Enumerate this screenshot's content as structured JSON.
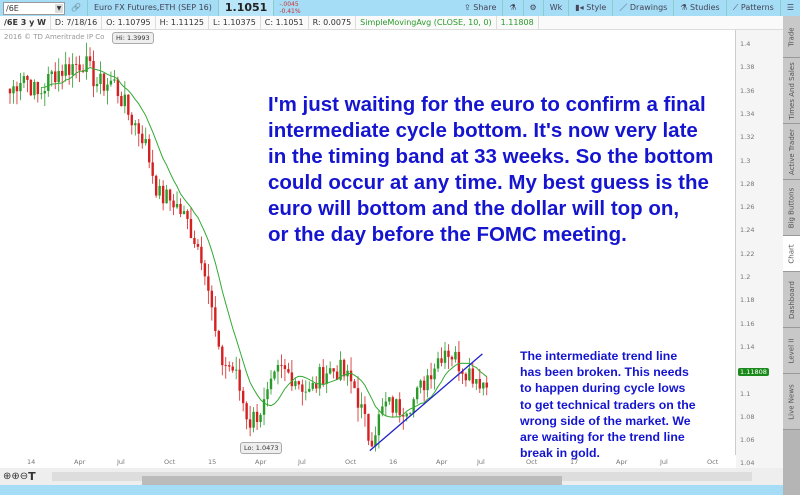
{
  "toolbar": {
    "symbol": "/6E",
    "instrument": "Euro FX Futures,ETH (SEP 16)",
    "last": "1.1051",
    "change": "-.0045",
    "change_pct": "-0.41%",
    "share": "Share",
    "aggregation": "Wk",
    "style": "Style",
    "drawings": "Drawings",
    "studies": "Studies",
    "patterns": "Patterns"
  },
  "info": {
    "period": "/6E 3 y W",
    "date": "D: 7/18/16",
    "open": "O: 1.10795",
    "high": "H: 1.11125",
    "low": "L: 1.10375",
    "close": "C: 1.1051",
    "range": "R: 0.0075",
    "study": "SimpleMovingAvg (CLOSE, 10, 0)",
    "study_value": "1.11808"
  },
  "copyright": "2016 © TD Ameritrade IP Co",
  "hi_label": "Hi: 1.3993",
  "lo_label": "Lo: 1.0473",
  "side_tabs": [
    "Trade",
    "Times And Sales",
    "Active Trader",
    "Big Buttons",
    "Chart",
    "Dashboard",
    "Level II",
    "Live News"
  ],
  "active_tab": "Chart",
  "colors": {
    "up": "#2a9a2a",
    "down": "#d42020",
    "sma": "#33aa33",
    "trendline": "#2222cc",
    "annotation": "#1515d0",
    "last_badge": "#1a8a1a"
  },
  "annotation_main": "I'm just waiting for the euro to confirm a final\nintermediate cycle bottom. It's now very late\nin the timing band at 33 weeks. So the bottom\ncould occur at any time. My best guess is the\neuro will bottom and the dollar will top on,\nor the day before the FOMC meeting.",
  "annotation_side": "The intermediate trend line\nhas been broken. This needs\nto happen during cycle lows\nto get technical traders on the\nwrong side of the market. We\nare waiting for the trend line\nbreak in gold.",
  "chart_data": {
    "type": "candlestick",
    "ylim": [
      1.04,
      1.41
    ],
    "y_ticks": [
      "1.4",
      "1.38",
      "1.36",
      "1.34",
      "1.32",
      "1.3",
      "1.28",
      "1.26",
      "1.24",
      "1.22",
      "1.2",
      "1.18",
      "1.16",
      "1.14",
      "1.1",
      "1.08",
      "1.06",
      "1.04"
    ],
    "x_ticks": [
      "14",
      "Apr",
      "Jul",
      "Oct",
      "15",
      "Apr",
      "Jul",
      "Oct",
      "16",
      "Apr",
      "Jul",
      "Oct",
      "17",
      "Apr",
      "Jul",
      "Oct"
    ],
    "last_value": "1.11808",
    "monthly_closes": [
      [
        "2013-11",
        1.355
      ],
      [
        "2013-12",
        1.375
      ],
      [
        "2014-01",
        1.355
      ],
      [
        "2014-02",
        1.375
      ],
      [
        "2014-03",
        1.38
      ],
      [
        "2014-04",
        1.385
      ],
      [
        "2014-05",
        1.365
      ],
      [
        "2014-06",
        1.368
      ],
      [
        "2014-07",
        1.34
      ],
      [
        "2014-08",
        1.32
      ],
      [
        "2014-09",
        1.27
      ],
      [
        "2014-10",
        1.265
      ],
      [
        "2014-11",
        1.245
      ],
      [
        "2014-12",
        1.215
      ],
      [
        "2015-01",
        1.13
      ],
      [
        "2015-02",
        1.12
      ],
      [
        "2015-03",
        1.075
      ],
      [
        "2015-04",
        1.09
      ],
      [
        "2015-05",
        1.12
      ],
      [
        "2015-06",
        1.115
      ],
      [
        "2015-07",
        1.1
      ],
      [
        "2015-08",
        1.12
      ],
      [
        "2015-09",
        1.12
      ],
      [
        "2015-10",
        1.105
      ],
      [
        "2015-11",
        1.06
      ],
      [
        "2015-12",
        1.09
      ],
      [
        "2016-01",
        1.088
      ],
      [
        "2016-02",
        1.095
      ],
      [
        "2016-03",
        1.12
      ],
      [
        "2016-04",
        1.14
      ],
      [
        "2016-05",
        1.125
      ],
      [
        "2016-06",
        1.115
      ],
      [
        "2016-07",
        1.105
      ]
    ],
    "high": 1.3993,
    "low": 1.0473,
    "trendline": [
      [
        "2015-11",
        1.051
      ],
      [
        "2016-06",
        1.134
      ]
    ],
    "sma_period": 10
  }
}
